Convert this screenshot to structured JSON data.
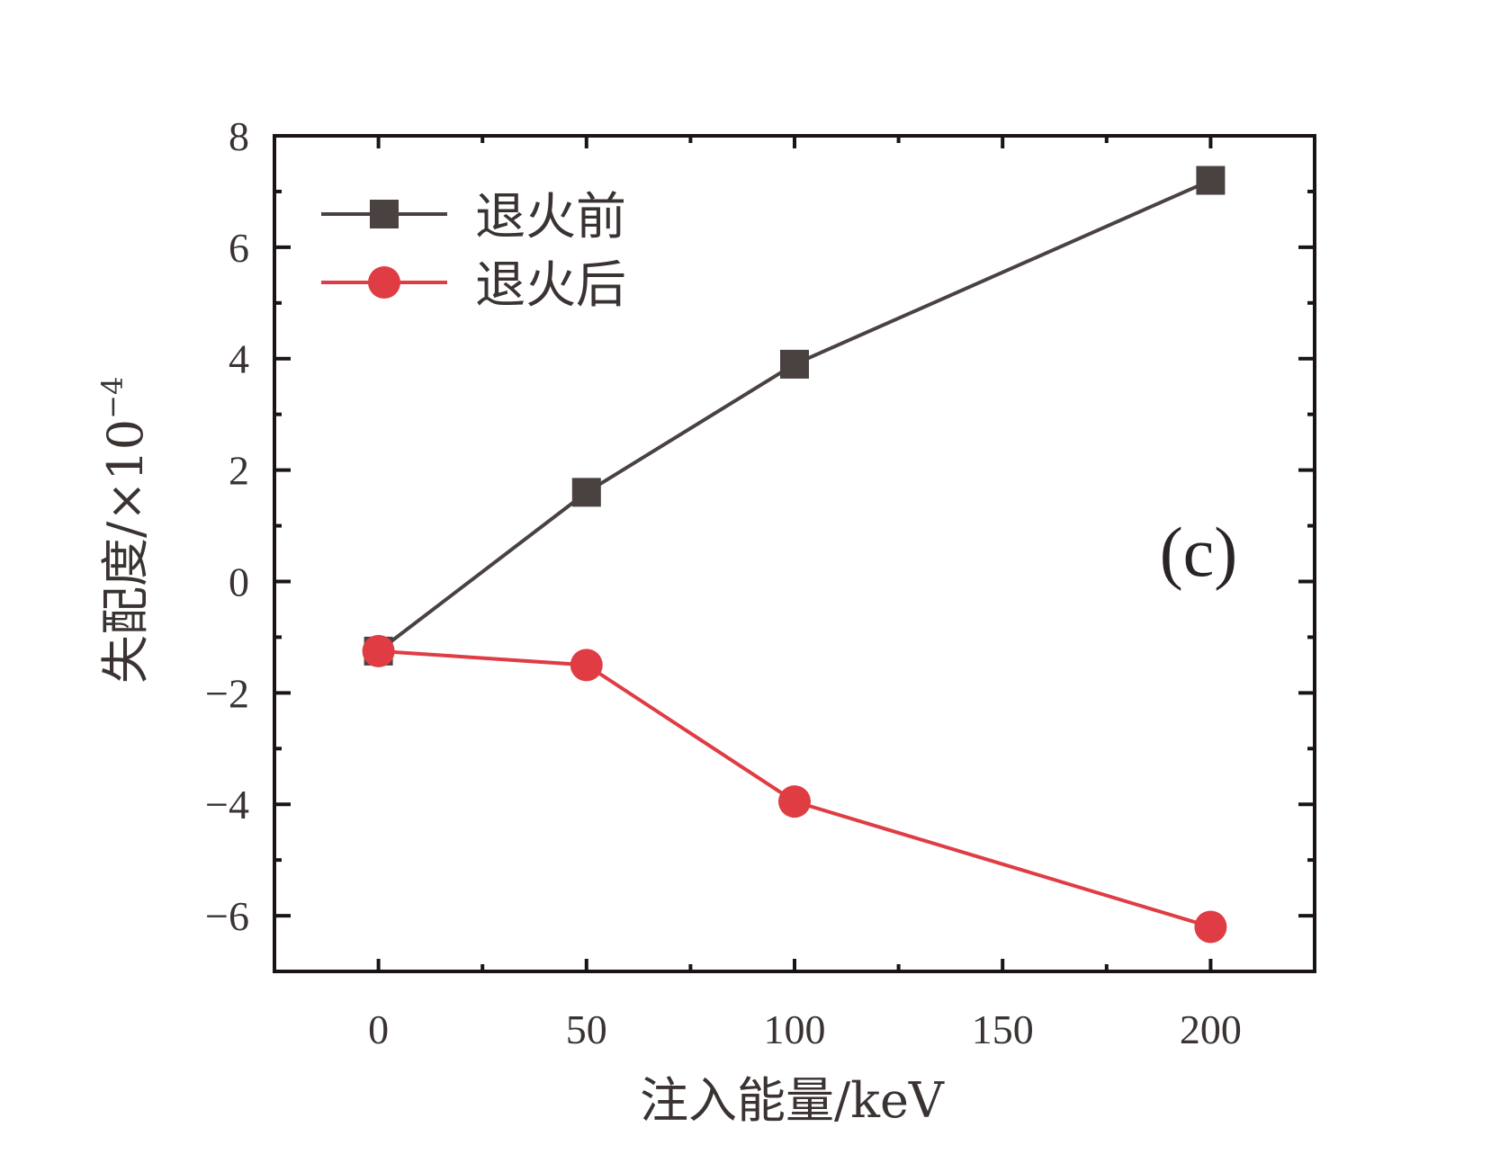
{
  "chart_data": {
    "type": "line",
    "title": "",
    "panel_label": "(c)",
    "xlabel": "注入能量/keV",
    "ylabel": "失配度/×10",
    "ylabel_exponent": "−4",
    "xlim": [
      -25,
      225
    ],
    "ylim": [
      -7,
      8
    ],
    "xticks": [
      0,
      50,
      100,
      150,
      200
    ],
    "xtick_labels": [
      "0",
      "50",
      "100",
      "150",
      "200"
    ],
    "yticks": [
      -6,
      -4,
      -2,
      0,
      2,
      4,
      6,
      8
    ],
    "ytick_labels": [
      "−6",
      "−4",
      "−2",
      "0",
      "2",
      "4",
      "6",
      "8"
    ],
    "grid": false,
    "legend_position": "top-left",
    "series": [
      {
        "name": "退火前",
        "marker": "square",
        "color": "#4a4241",
        "x": [
          0,
          50,
          100,
          200
        ],
        "y": [
          -1.25,
          1.6,
          3.9,
          7.2
        ]
      },
      {
        "name": "退火后",
        "marker": "circle",
        "color": "#e03c44",
        "x": [
          0,
          50,
          100,
          200
        ],
        "y": [
          -1.25,
          -1.5,
          -3.95,
          -6.2
        ]
      }
    ]
  }
}
